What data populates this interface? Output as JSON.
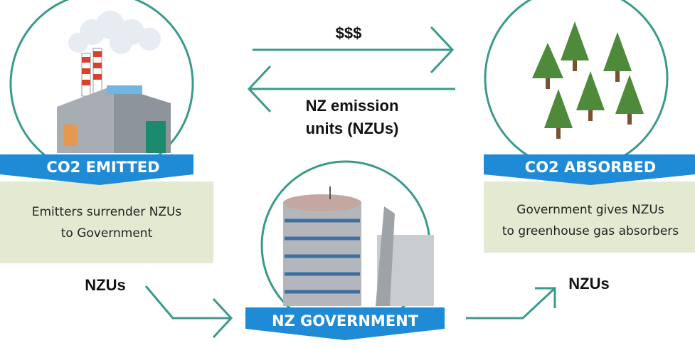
{
  "top_arrow": {
    "label": "$$$"
  },
  "bottom_arrow": {
    "label_lines": [
      "NZ emission",
      "units (NZUs)"
    ]
  },
  "left_panel": {
    "banner": "CO2 EMITTED",
    "description_lines": [
      "Emitters surrender NZUs",
      "to Government"
    ],
    "flow_label": "NZUs"
  },
  "right_panel": {
    "banner": "CO2 ABSORBED",
    "description_lines": [
      "Government gives NZUs",
      "to greenhouse gas absorbers"
    ],
    "flow_label": "NZUs"
  },
  "center": {
    "banner": "NZ GOVERNMENT"
  }
}
